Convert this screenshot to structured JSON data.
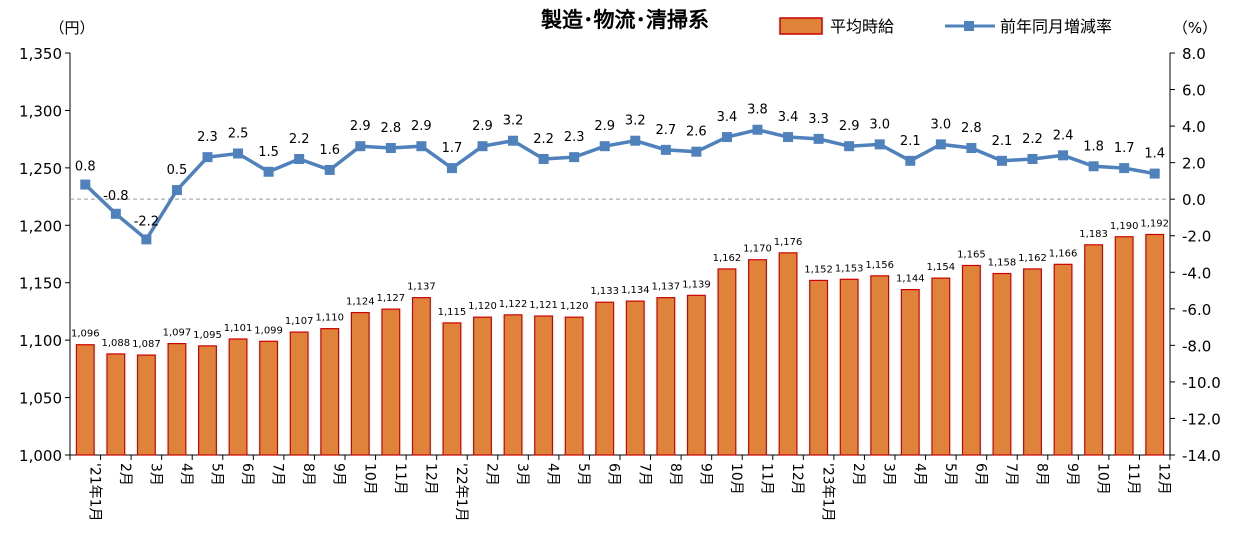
{
  "chart_data": {
    "type": "bar",
    "title": "製造･物流･清掃系",
    "y_unit_left": "（円）",
    "y_unit_right": "（%）",
    "categories": [
      "'21年1月",
      "2月",
      "3月",
      "4月",
      "5月",
      "6月",
      "7月",
      "8月",
      "9月",
      "10月",
      "11月",
      "12月",
      "'22年1月",
      "2月",
      "3月",
      "4月",
      "5月",
      "6月",
      "7月",
      "8月",
      "9月",
      "10月",
      "11月",
      "12月",
      "'23年1月",
      "2月",
      "3月",
      "4月",
      "5月",
      "6月",
      "7月",
      "8月",
      "9月",
      "10月",
      "11月",
      "12月"
    ],
    "series": [
      {
        "name": "平均時給",
        "type": "bar",
        "axis": "left",
        "values": [
          1096,
          1088,
          1087,
          1097,
          1095,
          1101,
          1099,
          1107,
          1110,
          1124,
          1127,
          1137,
          1115,
          1120,
          1122,
          1121,
          1120,
          1133,
          1134,
          1137,
          1139,
          1162,
          1170,
          1176,
          1152,
          1153,
          1156,
          1144,
          1154,
          1165,
          1158,
          1162,
          1166,
          1183,
          1190,
          1192
        ],
        "labels": [
          "1,096",
          "1,088",
          "1,087",
          "1,097",
          "1,095",
          "1,101",
          "1,099",
          "1,107",
          "1,110",
          "1,124",
          "1,127",
          "1,137",
          "1,115",
          "1,120",
          "1,122",
          "1,121",
          "1,120",
          "1,133",
          "1,134",
          "1,137",
          "1,139",
          "1,162",
          "1,170",
          "1,176",
          "1,152",
          "1,153",
          "1,156",
          "1,144",
          "1,154",
          "1,165",
          "1,158",
          "1,162",
          "1,166",
          "1,183",
          "1,190",
          "1,192"
        ]
      },
      {
        "name": "前年同月増減率",
        "type": "line",
        "axis": "right",
        "values": [
          0.8,
          -0.8,
          -2.2,
          0.5,
          2.3,
          2.5,
          1.5,
          2.2,
          1.6,
          2.9,
          2.8,
          2.9,
          1.7,
          2.9,
          3.2,
          2.2,
          2.3,
          2.9,
          3.2,
          2.7,
          2.6,
          3.4,
          3.8,
          3.4,
          3.3,
          2.9,
          3.0,
          2.1,
          3.0,
          2.8,
          2.1,
          2.2,
          2.4,
          1.8,
          1.7,
          1.4
        ],
        "labels": [
          "0.8",
          "-0.8",
          "-2.2",
          "0.5",
          "2.3",
          "2.5",
          "1.5",
          "2.2",
          "1.6",
          "2.9",
          "2.8",
          "2.9",
          "1.7",
          "2.9",
          "3.2",
          "2.2",
          "2.3",
          "2.9",
          "3.2",
          "2.7",
          "2.6",
          "3.4",
          "3.8",
          "3.4",
          "3.3",
          "2.9",
          "3.0",
          "2.1",
          "3.0",
          "2.8",
          "2.1",
          "2.2",
          "2.4",
          "1.8",
          "1.7",
          "1.4"
        ]
      }
    ],
    "y_left": {
      "min": 1000,
      "max": 1350,
      "step": 50,
      "ticks": [
        "1,000",
        "1,050",
        "1,100",
        "1,150",
        "1,200",
        "1,250",
        "1,300",
        "1,350"
      ]
    },
    "y_right": {
      "min": -14,
      "max": 8,
      "step": 2,
      "ticks": [
        "-14.0",
        "-12.0",
        "-10.0",
        "-8.0",
        "-6.0",
        "-4.0",
        "-2.0",
        "0.0",
        "2.0",
        "4.0",
        "6.0",
        "8.0"
      ]
    },
    "zero_line_right": 0,
    "legend_position": "top-right",
    "colors": {
      "bar_fill": "#E0833A",
      "bar_stroke": "#CC0000",
      "line": "#4F81BD",
      "marker": "#4F81BD",
      "zero_line": "#999999"
    }
  }
}
